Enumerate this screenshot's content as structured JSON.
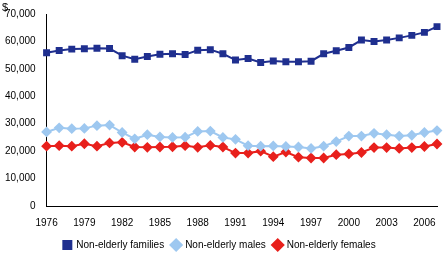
{
  "chart_data": {
    "type": "line",
    "ylabel": "$",
    "categories": [
      "1976",
      null,
      null,
      "1979",
      null,
      null,
      "1982",
      null,
      null,
      "1985",
      null,
      null,
      "1988",
      null,
      null,
      "1991",
      null,
      null,
      "1994",
      null,
      null,
      "1997",
      null,
      null,
      "2000",
      null,
      null,
      "2003",
      null,
      null,
      "2006",
      null
    ],
    "series": [
      {
        "name": "Non-elderly families",
        "color": "#1f2f8f",
        "marker": "square",
        "line_style": "solid",
        "values": [
          55900,
          56700,
          57200,
          57300,
          57500,
          57400,
          54800,
          53500,
          54500,
          55300,
          55500,
          55200,
          56800,
          57000,
          55500,
          53200,
          53800,
          52300,
          52900,
          52600,
          52600,
          52800,
          55500,
          56600,
          57800,
          60500,
          60000,
          60500,
          61300,
          62200,
          63300,
          65400
        ]
      },
      {
        "name": "Non-elderly males",
        "color": "#9ec8f0",
        "marker": "diamond",
        "line_style": "solid",
        "values": [
          27000,
          28500,
          28200,
          28300,
          29300,
          29500,
          26800,
          24500,
          26000,
          25200,
          25000,
          25100,
          27200,
          27300,
          25000,
          24300,
          22000,
          21800,
          21900,
          21700,
          21500,
          21000,
          21800,
          23500,
          25500,
          25500,
          26500,
          26000,
          25500,
          25800,
          26800,
          27500
        ]
      },
      {
        "name": "Non-elderly females",
        "color": "#e8201c",
        "marker": "diamond",
        "line_style": "solid",
        "values": [
          21800,
          22000,
          21800,
          22700,
          21800,
          23000,
          23200,
          21500,
          21400,
          21500,
          21600,
          22000,
          21400,
          22100,
          21500,
          19300,
          19300,
          20000,
          18000,
          19700,
          17800,
          17500,
          17500,
          18700,
          19000,
          19500,
          21300,
          21300,
          21000,
          21300,
          21700,
          22600
        ]
      }
    ],
    "ylim": [
      0,
      70000
    ],
    "yticks": [
      0,
      {
        "value": 10000,
        "label": "10,000"
      },
      {
        "value": 20000,
        "label": "20,000"
      },
      {
        "value": 30000,
        "label": "30,000"
      },
      {
        "value": 40000,
        "label": "40,000"
      },
      {
        "value": 50000,
        "label": "50,000"
      },
      {
        "value": 60000,
        "label": "60,000"
      },
      {
        "value": 70000,
        "label": "70,000"
      }
    ],
    "grid": false,
    "legend": "bottom"
  }
}
